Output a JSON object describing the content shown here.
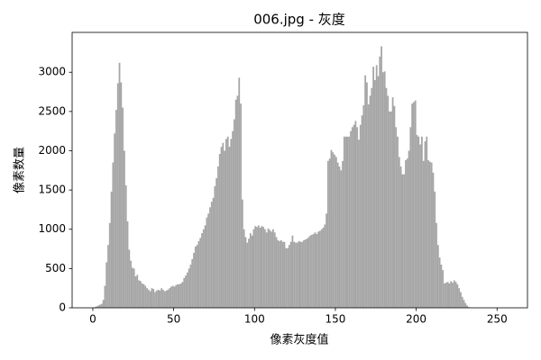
{
  "chart_data": {
    "type": "histogram",
    "title": "006.jpg - 灰度",
    "x_label": "像素灰度值",
    "y_label": "像素数量",
    "color": "#a6a6a6",
    "grid": false,
    "xlim": [
      -12.8,
      268.8
    ],
    "ylim": [
      0,
      3507
    ],
    "xticks": [
      0,
      50,
      100,
      150,
      200,
      250
    ],
    "yticks": [
      0,
      500,
      1000,
      1500,
      2000,
      2500,
      3000
    ],
    "bins": [
      0,
      1,
      2,
      3,
      4,
      5,
      6,
      7,
      8,
      9,
      10,
      11,
      12,
      13,
      14,
      15,
      16,
      17,
      18,
      19,
      20,
      21,
      22,
      23,
      24,
      25,
      26,
      27,
      28,
      29,
      30,
      31,
      32,
      33,
      34,
      35,
      36,
      37,
      38,
      39,
      40,
      41,
      42,
      43,
      44,
      45,
      46,
      47,
      48,
      49,
      50,
      51,
      52,
      53,
      54,
      55,
      56,
      57,
      58,
      59,
      60,
      61,
      62,
      63,
      64,
      65,
      66,
      67,
      68,
      69,
      70,
      71,
      72,
      73,
      74,
      75,
      76,
      77,
      78,
      79,
      80,
      81,
      82,
      83,
      84,
      85,
      86,
      87,
      88,
      89,
      90,
      91,
      92,
      93,
      94,
      95,
      96,
      97,
      98,
      99,
      100,
      101,
      102,
      103,
      104,
      105,
      106,
      107,
      108,
      109,
      110,
      111,
      112,
      113,
      114,
      115,
      116,
      117,
      118,
      119,
      120,
      121,
      122,
      123,
      124,
      125,
      126,
      127,
      128,
      129,
      130,
      131,
      132,
      133,
      134,
      135,
      136,
      137,
      138,
      139,
      140,
      141,
      142,
      143,
      144,
      145,
      146,
      147,
      148,
      149,
      150,
      151,
      152,
      153,
      154,
      155,
      156,
      157,
      158,
      159,
      160,
      161,
      162,
      163,
      164,
      165,
      166,
      167,
      168,
      169,
      170,
      171,
      172,
      173,
      174,
      175,
      176,
      177,
      178,
      179,
      180,
      181,
      182,
      183,
      184,
      185,
      186,
      187,
      188,
      189,
      190,
      191,
      192,
      193,
      194,
      195,
      196,
      197,
      198,
      199,
      200,
      201,
      202,
      203,
      204,
      205,
      206,
      207,
      208,
      209,
      210,
      211,
      212,
      213,
      214,
      215,
      216,
      217,
      218,
      219,
      220,
      221,
      222,
      223,
      224,
      225,
      226,
      227,
      228,
      229,
      230,
      231,
      232,
      233,
      234,
      235,
      236,
      237,
      238,
      239,
      240,
      241,
      242,
      243,
      244,
      245,
      246,
      247,
      248,
      249,
      250,
      251,
      252,
      253,
      254,
      255,
      256
    ],
    "values": [
      0,
      10,
      20,
      30,
      40,
      50,
      100,
      280,
      580,
      800,
      1080,
      1480,
      1850,
      2220,
      2520,
      2860,
      3120,
      2870,
      2550,
      2000,
      1560,
      1100,
      740,
      600,
      510,
      500,
      400,
      420,
      350,
      340,
      310,
      300,
      280,
      250,
      230,
      210,
      250,
      240,
      200,
      220,
      230,
      220,
      250,
      230,
      210,
      220,
      230,
      250,
      270,
      280,
      270,
      290,
      300,
      300,
      310,
      330,
      380,
      410,
      450,
      500,
      550,
      620,
      700,
      780,
      800,
      850,
      890,
      950,
      1000,
      1050,
      1150,
      1200,
      1280,
      1350,
      1400,
      1550,
      1650,
      1800,
      1960,
      2050,
      2100,
      2000,
      2150,
      2180,
      2050,
      2150,
      2250,
      2400,
      2650,
      2700,
      2930,
      2600,
      1380,
      1000,
      900,
      830,
      880,
      950,
      920,
      1000,
      1040,
      1030,
      1050,
      1020,
      1040,
      1030,
      1000,
      960,
      1010,
      990,
      970,
      1000,
      960,
      900,
      860,
      850,
      860,
      840,
      840,
      760,
      760,
      800,
      840,
      920,
      840,
      830,
      830,
      850,
      840,
      840,
      860,
      870,
      880,
      900,
      920,
      930,
      940,
      960,
      940,
      970,
      980,
      1000,
      1020,
      1060,
      1200,
      1870,
      1900,
      2010,
      1980,
      1950,
      1920,
      1850,
      1800,
      1750,
      1870,
      2180,
      2180,
      2180,
      2180,
      2250,
      2300,
      2330,
      2380,
      2300,
      2140,
      2330,
      2450,
      2580,
      2960,
      2870,
      2590,
      2700,
      2800,
      3070,
      2900,
      3090,
      2950,
      3200,
      3330,
      3000,
      3010,
      2800,
      2700,
      2500,
      2500,
      2680,
      2570,
      2300,
      2180,
      1920,
      1800,
      1700,
      1700,
      1880,
      1900,
      2000,
      2300,
      2600,
      2620,
      2640,
      2200,
      2180,
      2080,
      2180,
      1870,
      2120,
      2180,
      1880,
      1860,
      1850,
      1720,
      1480,
      1080,
      800,
      640,
      550,
      480,
      310,
      320,
      330,
      310,
      340,
      320,
      350,
      330,
      300,
      250,
      200,
      140,
      100,
      60,
      30,
      10,
      5,
      0,
      0,
      0,
      0,
      0,
      0,
      0,
      0,
      0,
      0,
      0,
      0,
      0,
      0,
      0,
      0,
      0,
      0,
      0,
      0,
      0,
      0
    ]
  }
}
